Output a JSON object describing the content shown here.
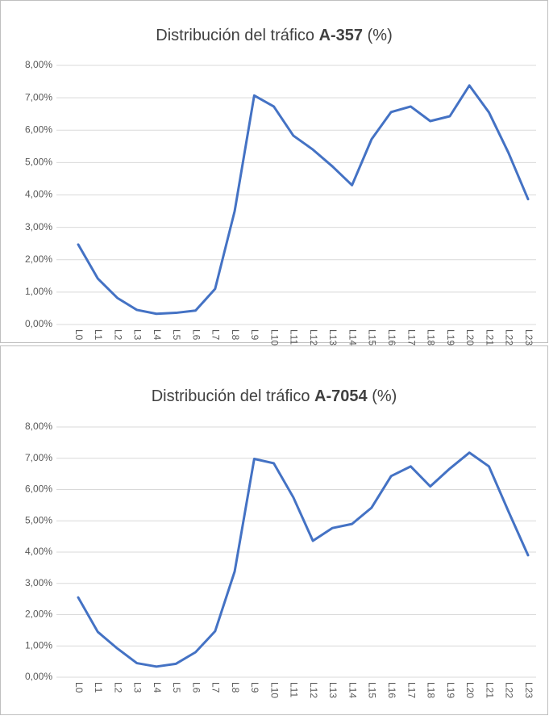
{
  "chart_data": [
    {
      "type": "line",
      "title": {
        "text": "Distribución del tráfico",
        "highlight": "A-357",
        "suffix": "(%)"
      },
      "categories": [
        "L0",
        "L1",
        "L2",
        "L3",
        "L4",
        "L5",
        "L6",
        "L7",
        "L8",
        "L9",
        "L10",
        "L11",
        "L12",
        "L13",
        "L14",
        "L15",
        "L16",
        "L17",
        "L18",
        "L19",
        "L20",
        "L21",
        "L22",
        "L23"
      ],
      "values": [
        2.47,
        1.42,
        0.82,
        0.45,
        0.33,
        0.36,
        0.43,
        1.1,
        3.5,
        7.07,
        6.73,
        5.83,
        5.4,
        4.88,
        4.3,
        5.72,
        6.56,
        6.73,
        6.28,
        6.43,
        7.38,
        6.55,
        5.3,
        3.87
      ],
      "color": "#4472c4",
      "ylim": [
        0,
        8
      ],
      "yticks": [
        {
          "value": 0,
          "label": "0,00%"
        },
        {
          "value": 1,
          "label": "1,00%"
        },
        {
          "value": 2,
          "label": "2,00%"
        },
        {
          "value": 3,
          "label": "3,00%"
        },
        {
          "value": 4,
          "label": "4,00%"
        },
        {
          "value": 5,
          "label": "5,00%"
        },
        {
          "value": 6,
          "label": "6,00%"
        },
        {
          "value": 7,
          "label": "7,00%"
        },
        {
          "value": 8,
          "label": "8,00%"
        }
      ],
      "grid": true
    },
    {
      "type": "line",
      "title": {
        "text": "Distribución del tráfico",
        "highlight": "A-7054",
        "suffix": "(%)"
      },
      "categories": [
        "L0",
        "L1",
        "L2",
        "L3",
        "L4",
        "L5",
        "L6",
        "L7",
        "L8",
        "L9",
        "L10",
        "L11",
        "L12",
        "L13",
        "L14",
        "L15",
        "L16",
        "L17",
        "L18",
        "L19",
        "L20",
        "L21",
        "L22",
        "L23"
      ],
      "values": [
        2.55,
        1.45,
        0.92,
        0.45,
        0.34,
        0.43,
        0.8,
        1.47,
        3.38,
        6.98,
        6.84,
        5.75,
        4.36,
        4.77,
        4.9,
        5.42,
        6.43,
        6.74,
        6.1,
        6.67,
        7.18,
        6.74,
        5.3,
        3.9
      ],
      "color": "#4472c4",
      "ylim": [
        0,
        8
      ],
      "yticks": [
        {
          "value": 0,
          "label": "0,00%"
        },
        {
          "value": 1,
          "label": "1,00%"
        },
        {
          "value": 2,
          "label": "2,00%"
        },
        {
          "value": 3,
          "label": "3,00%"
        },
        {
          "value": 4,
          "label": "4,00%"
        },
        {
          "value": 5,
          "label": "5,00%"
        },
        {
          "value": 6,
          "label": "6,00%"
        },
        {
          "value": 7,
          "label": "7,00%"
        },
        {
          "value": 8,
          "label": "8,00%"
        }
      ],
      "grid": true
    }
  ]
}
